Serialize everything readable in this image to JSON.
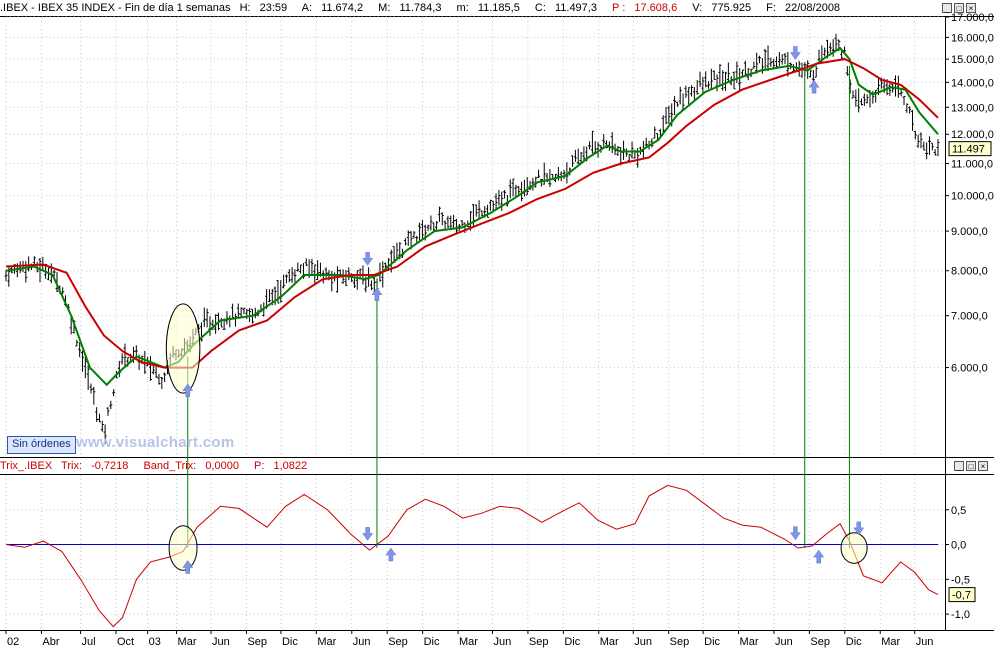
{
  "price_header": {
    "symbol": ".IBEX - IBEX 35 INDEX - Fin de día 1 semanas",
    "h_label": "H:",
    "h_value": "23:59",
    "a_label": "A:",
    "a_value": "11.674,2",
    "m_label": "M:",
    "m_value": "11.784,3",
    "mm_label": "m:",
    "mm_value": "11.185,5",
    "c_label": "C:",
    "c_value": "11.497,3",
    "p_label": "P :",
    "p_value": "17.608,6",
    "v_label": "V:",
    "v_value": "775.925",
    "f_label": "F:",
    "f_value": "22/08/2008"
  },
  "trix_header": {
    "name": "Trix_.IBEX",
    "trix_label": "Trix:",
    "trix_value": "-0,7218",
    "band_label": "Band_Trix:",
    "band_value": "0,0000",
    "p_label": "P:",
    "p_value": "1,0822"
  },
  "controls": {
    "minimize": "_",
    "maximize": "□",
    "close": "×"
  },
  "sin_ordenes": "Sin órdenes",
  "watermark": "www.visualchart.com",
  "colors": {
    "price_bars": "#000000",
    "ma_fast": "#008000",
    "ma_slow": "#cc0000",
    "trix_line": "#cc0000",
    "zero_line": "#0000cc",
    "signal_lines": "#008000",
    "arrows": "#7f95e6",
    "grid": "#c8c8c8",
    "last_price_box": "#ffffcc"
  },
  "chart_data": [
    {
      "type": "line",
      "panel": "price",
      "title": "",
      "x_range": [
        0,
        1
      ],
      "ylim": [
        4600,
        17000
      ],
      "grid": true,
      "y_ticks": [
        {
          "value": 6000,
          "label": "6.000,0"
        },
        {
          "value": 7000,
          "label": "7.000,0"
        },
        {
          "value": 8000,
          "label": "8.000,0"
        },
        {
          "value": 9000,
          "label": "9.000,0"
        },
        {
          "value": 10000,
          "label": "10.000,0"
        },
        {
          "value": 11000,
          "label": "11.000,0"
        },
        {
          "value": 12000,
          "label": "12.000,0"
        },
        {
          "value": 13000,
          "label": "13.000,0"
        },
        {
          "value": 14000,
          "label": "14.000,0"
        },
        {
          "value": 15000,
          "label": "15.000,0"
        },
        {
          "value": 16000,
          "label": "16.000,0"
        },
        {
          "value": 17000,
          "label": "17.000,0"
        }
      ],
      "last_price_label": "11.497",
      "last_price_value": 11497,
      "price_path": [
        [
          0.0,
          7900
        ],
        [
          0.02,
          8150
        ],
        [
          0.045,
          8050
        ],
        [
          0.06,
          7600
        ],
        [
          0.075,
          6600
        ],
        [
          0.09,
          5700
        ],
        [
          0.105,
          4900
        ],
        [
          0.112,
          5400
        ],
        [
          0.125,
          6200
        ],
        [
          0.14,
          6200
        ],
        [
          0.155,
          6000
        ],
        [
          0.168,
          5800
        ],
        [
          0.18,
          6300
        ],
        [
          0.195,
          6400
        ],
        [
          0.21,
          6800
        ],
        [
          0.24,
          7000
        ],
        [
          0.265,
          7000
        ],
        [
          0.29,
          7500
        ],
        [
          0.31,
          8000
        ],
        [
          0.33,
          8100
        ],
        [
          0.35,
          7800
        ],
        [
          0.37,
          7900
        ],
        [
          0.385,
          7800
        ],
        [
          0.395,
          7700
        ],
        [
          0.41,
          8200
        ],
        [
          0.44,
          8900
        ],
        [
          0.465,
          9300
        ],
        [
          0.485,
          9100
        ],
        [
          0.51,
          9600
        ],
        [
          0.53,
          9800
        ],
        [
          0.55,
          10300
        ],
        [
          0.57,
          10500
        ],
        [
          0.59,
          10500
        ],
        [
          0.61,
          11000
        ],
        [
          0.625,
          11500
        ],
        [
          0.645,
          11700
        ],
        [
          0.66,
          11300
        ],
        [
          0.675,
          11300
        ],
        [
          0.69,
          11600
        ],
        [
          0.705,
          12300
        ],
        [
          0.72,
          13200
        ],
        [
          0.74,
          13800
        ],
        [
          0.76,
          14100
        ],
        [
          0.78,
          14200
        ],
        [
          0.8,
          14600
        ],
        [
          0.82,
          15000
        ],
        [
          0.84,
          14900
        ],
        [
          0.855,
          14500
        ],
        [
          0.865,
          14200
        ],
        [
          0.875,
          15300
        ],
        [
          0.89,
          15900
        ],
        [
          0.9,
          15200
        ],
        [
          0.91,
          13100
        ],
        [
          0.925,
          13300
        ],
        [
          0.94,
          13800
        ],
        [
          0.955,
          13900
        ],
        [
          0.965,
          13300
        ],
        [
          0.975,
          12100
        ],
        [
          0.985,
          11600
        ],
        [
          1.0,
          11500
        ]
      ],
      "series": [
        {
          "name": "",
          "style": "ma_fast",
          "points": [
            [
              0.0,
              8000
            ],
            [
              0.03,
              8100
            ],
            [
              0.05,
              7900
            ],
            [
              0.07,
              7000
            ],
            [
              0.09,
              6000
            ],
            [
              0.108,
              5700
            ],
            [
              0.12,
              5900
            ],
            [
              0.14,
              6200
            ],
            [
              0.155,
              6100
            ],
            [
              0.17,
              6000
            ],
            [
              0.185,
              6100
            ],
            [
              0.2,
              6400
            ],
            [
              0.23,
              6900
            ],
            [
              0.265,
              7000
            ],
            [
              0.295,
              7400
            ],
            [
              0.32,
              7900
            ],
            [
              0.34,
              7900
            ],
            [
              0.36,
              7900
            ],
            [
              0.385,
              7800
            ],
            [
              0.4,
              7900
            ],
            [
              0.43,
              8500
            ],
            [
              0.46,
              9000
            ],
            [
              0.49,
              9100
            ],
            [
              0.52,
              9500
            ],
            [
              0.55,
              10000
            ],
            [
              0.57,
              10400
            ],
            [
              0.6,
              10600
            ],
            [
              0.625,
              11200
            ],
            [
              0.645,
              11600
            ],
            [
              0.66,
              11400
            ],
            [
              0.68,
              11400
            ],
            [
              0.7,
              11800
            ],
            [
              0.72,
              12700
            ],
            [
              0.75,
              13600
            ],
            [
              0.78,
              14100
            ],
            [
              0.81,
              14500
            ],
            [
              0.84,
              14700
            ],
            [
              0.86,
              14500
            ],
            [
              0.88,
              15100
            ],
            [
              0.895,
              15500
            ],
            [
              0.905,
              15000
            ],
            [
              0.915,
              13900
            ],
            [
              0.93,
              13500
            ],
            [
              0.95,
              13800
            ],
            [
              0.965,
              13700
            ],
            [
              0.98,
              12800
            ],
            [
              1.0,
              12000
            ]
          ]
        },
        {
          "name": "",
          "style": "ma_slow",
          "points": [
            [
              0.0,
              8100
            ],
            [
              0.04,
              8150
            ],
            [
              0.065,
              7950
            ],
            [
              0.085,
              7200
            ],
            [
              0.105,
              6600
            ],
            [
              0.125,
              6300
            ],
            [
              0.145,
              6100
            ],
            [
              0.17,
              6000
            ],
            [
              0.2,
              6000
            ],
            [
              0.22,
              6300
            ],
            [
              0.25,
              6700
            ],
            [
              0.28,
              6900
            ],
            [
              0.31,
              7400
            ],
            [
              0.34,
              7800
            ],
            [
              0.37,
              7900
            ],
            [
              0.395,
              7900
            ],
            [
              0.42,
              8100
            ],
            [
              0.45,
              8600
            ],
            [
              0.48,
              8900
            ],
            [
              0.51,
              9200
            ],
            [
              0.54,
              9500
            ],
            [
              0.57,
              9900
            ],
            [
              0.6,
              10200
            ],
            [
              0.63,
              10700
            ],
            [
              0.66,
              11000
            ],
            [
              0.69,
              11200
            ],
            [
              0.71,
              11700
            ],
            [
              0.73,
              12300
            ],
            [
              0.76,
              13100
            ],
            [
              0.79,
              13700
            ],
            [
              0.82,
              14100
            ],
            [
              0.85,
              14500
            ],
            [
              0.87,
              14800
            ],
            [
              0.9,
              15000
            ],
            [
              0.92,
              14600
            ],
            [
              0.94,
              14100
            ],
            [
              0.96,
              13900
            ],
            [
              0.98,
              13300
            ],
            [
              1.0,
              12600
            ]
          ]
        }
      ],
      "markers": [
        {
          "kind": "ellipse",
          "x": 0.19,
          "y": 6350,
          "rx": 0.018,
          "ry": 900
        },
        {
          "kind": "arrow-up",
          "x": 0.195,
          "y": 5600
        },
        {
          "kind": "arrow-down",
          "x": 0.388,
          "y": 8300
        },
        {
          "kind": "arrow-up",
          "x": 0.398,
          "y": 7450
        },
        {
          "kind": "arrow-down",
          "x": 0.847,
          "y": 15300
        },
        {
          "kind": "arrow-up",
          "x": 0.867,
          "y": 13800
        }
      ]
    },
    {
      "type": "line",
      "panel": "trix",
      "title": "",
      "x_range": [
        0,
        1
      ],
      "ylim": [
        -1.2,
        1.0
      ],
      "grid": true,
      "y_ticks": [
        {
          "value": -1.0,
          "label": "-1,0"
        },
        {
          "value": -0.5,
          "label": "-0,5"
        },
        {
          "value": 0.0,
          "label": "0,0"
        },
        {
          "value": 0.5,
          "label": "0,5"
        }
      ],
      "zero_level": 0,
      "last_value_label": "-0,7",
      "last_value": -0.72,
      "series": [
        {
          "name": "",
          "style": "trix_line",
          "points": [
            [
              0.0,
              0.0
            ],
            [
              0.02,
              -0.04
            ],
            [
              0.04,
              0.05
            ],
            [
              0.06,
              -0.1
            ],
            [
              0.08,
              -0.5
            ],
            [
              0.1,
              -0.95
            ],
            [
              0.115,
              -1.18
            ],
            [
              0.125,
              -1.05
            ],
            [
              0.14,
              -0.5
            ],
            [
              0.155,
              -0.25
            ],
            [
              0.175,
              -0.18
            ],
            [
              0.19,
              -0.1
            ],
            [
              0.205,
              0.25
            ],
            [
              0.23,
              0.55
            ],
            [
              0.25,
              0.52
            ],
            [
              0.28,
              0.25
            ],
            [
              0.3,
              0.55
            ],
            [
              0.32,
              0.72
            ],
            [
              0.345,
              0.5
            ],
            [
              0.37,
              0.15
            ],
            [
              0.39,
              -0.08
            ],
            [
              0.41,
              0.12
            ],
            [
              0.43,
              0.5
            ],
            [
              0.45,
              0.65
            ],
            [
              0.47,
              0.55
            ],
            [
              0.49,
              0.38
            ],
            [
              0.51,
              0.45
            ],
            [
              0.53,
              0.55
            ],
            [
              0.55,
              0.52
            ],
            [
              0.575,
              0.32
            ],
            [
              0.6,
              0.5
            ],
            [
              0.615,
              0.6
            ],
            [
              0.635,
              0.35
            ],
            [
              0.655,
              0.22
            ],
            [
              0.675,
              0.3
            ],
            [
              0.69,
              0.7
            ],
            [
              0.71,
              0.85
            ],
            [
              0.73,
              0.78
            ],
            [
              0.75,
              0.58
            ],
            [
              0.77,
              0.38
            ],
            [
              0.79,
              0.28
            ],
            [
              0.81,
              0.25
            ],
            [
              0.835,
              0.08
            ],
            [
              0.85,
              -0.05
            ],
            [
              0.865,
              -0.02
            ],
            [
              0.88,
              0.15
            ],
            [
              0.895,
              0.3
            ],
            [
              0.905,
              0.05
            ],
            [
              0.92,
              -0.45
            ],
            [
              0.94,
              -0.55
            ],
            [
              0.96,
              -0.25
            ],
            [
              0.975,
              -0.4
            ],
            [
              0.99,
              -0.65
            ],
            [
              1.0,
              -0.72
            ]
          ]
        }
      ],
      "markers": [
        {
          "kind": "ellipse",
          "x": 0.19,
          "y": -0.05,
          "rx": 0.015,
          "ry": 0.32
        },
        {
          "kind": "arrow-up",
          "x": 0.195,
          "y": -0.33
        },
        {
          "kind": "arrow-down",
          "x": 0.388,
          "y": 0.16
        },
        {
          "kind": "arrow-up",
          "x": 0.413,
          "y": -0.15
        },
        {
          "kind": "arrow-down",
          "x": 0.847,
          "y": 0.17
        },
        {
          "kind": "arrow-up",
          "x": 0.872,
          "y": -0.18
        },
        {
          "kind": "ellipse",
          "x": 0.91,
          "y": -0.05,
          "rx": 0.014,
          "ry": 0.22
        },
        {
          "kind": "arrow-down",
          "x": 0.915,
          "y": 0.24
        }
      ]
    }
  ],
  "signal_lines": [
    {
      "x": 0.195,
      "y_price": 6200,
      "y_trix": -0.05
    },
    {
      "x": 0.398,
      "y_price": 7800,
      "y_trix": -0.05
    },
    {
      "x": 0.857,
      "y_price": 14400,
      "y_trix": -0.05
    },
    {
      "x": 0.905,
      "y_price": 14700,
      "y_trix": -0.05
    }
  ],
  "x_axis": {
    "range": [
      0,
      1
    ],
    "ticks": [
      {
        "x": 0.0,
        "label": "02"
      },
      {
        "x": 0.038,
        "label": "Abr"
      },
      {
        "x": 0.08,
        "label": "Jul"
      },
      {
        "x": 0.118,
        "label": "Oct"
      },
      {
        "x": 0.152,
        "label": "03"
      },
      {
        "x": 0.183,
        "label": "Mar"
      },
      {
        "x": 0.22,
        "label": "Jun"
      },
      {
        "x": 0.258,
        "label": "Sep"
      },
      {
        "x": 0.295,
        "label": "Dic"
      },
      {
        "x": 0.333,
        "label": "Mar"
      },
      {
        "x": 0.371,
        "label": "Jun"
      },
      {
        "x": 0.409,
        "label": "Sep"
      },
      {
        "x": 0.447,
        "label": "Dic"
      },
      {
        "x": 0.485,
        "label": "Mar"
      },
      {
        "x": 0.522,
        "label": "Jun"
      },
      {
        "x": 0.56,
        "label": "Sep"
      },
      {
        "x": 0.598,
        "label": "Dic"
      },
      {
        "x": 0.636,
        "label": "Mar"
      },
      {
        "x": 0.673,
        "label": "Jun"
      },
      {
        "x": 0.711,
        "label": "Sep"
      },
      {
        "x": 0.748,
        "label": "Dic"
      },
      {
        "x": 0.786,
        "label": "Mar"
      },
      {
        "x": 0.824,
        "label": "Jun"
      },
      {
        "x": 0.862,
        "label": "Sep"
      },
      {
        "x": 0.9,
        "label": "Dic"
      },
      {
        "x": 0.938,
        "label": "Mar"
      },
      {
        "x": 0.975,
        "label": "Jun"
      }
    ]
  }
}
